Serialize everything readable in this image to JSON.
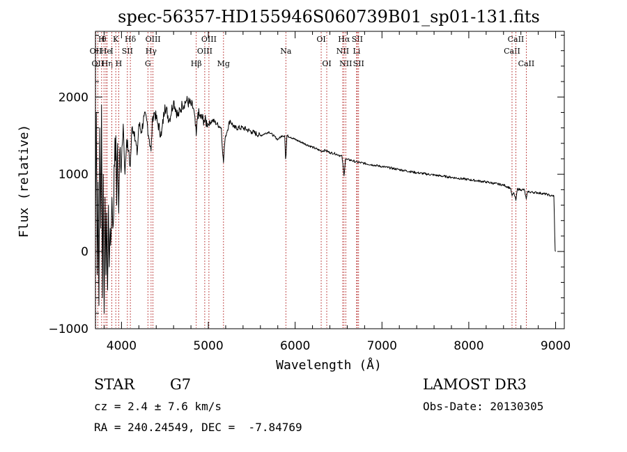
{
  "chart_data": {
    "type": "line",
    "title": "spec-56357-HD155946S060739B01_sp01-131.fits",
    "xlabel": "Wavelength (Å)",
    "ylabel": "Flux (relative)",
    "xlim": [
      3700,
      9100
    ],
    "ylim": [
      -1000,
      2850
    ],
    "x_ticks": [
      4000,
      5000,
      6000,
      7000,
      8000,
      9000
    ],
    "y_ticks": [
      -1000,
      0,
      1000,
      2000
    ],
    "series": [
      {
        "name": "flux",
        "x": [
          3700,
          3710,
          3720,
          3730,
          3740,
          3750,
          3760,
          3770,
          3780,
          3790,
          3800,
          3810,
          3820,
          3830,
          3840,
          3850,
          3860,
          3870,
          3880,
          3890,
          3900,
          3920,
          3935,
          3945,
          3955,
          3968,
          3980,
          4000,
          4020,
          4040,
          4060,
          4080,
          4101,
          4120,
          4150,
          4180,
          4200,
          4230,
          4260,
          4290,
          4320,
          4340,
          4360,
          4380,
          4420,
          4460,
          4500,
          4550,
          4600,
          4650,
          4700,
          4750,
          4800,
          4830,
          4861,
          4880,
          4900,
          4950,
          5000,
          5050,
          5100,
          5150,
          5167,
          5175,
          5184,
          5200,
          5250,
          5300,
          5400,
          5500,
          5600,
          5700,
          5800,
          5850,
          5880,
          5890,
          5896,
          5905,
          5950,
          6000,
          6100,
          6200,
          6300,
          6350,
          6400,
          6450,
          6500,
          6540,
          6563,
          6580,
          6600,
          6650,
          6700,
          6750,
          6800,
          6900,
          7000,
          7200,
          7400,
          7600,
          7800,
          8000,
          8200,
          8400,
          8480,
          8498,
          8520,
          8542,
          8560,
          8600,
          8640,
          8662,
          8680,
          8700,
          8800,
          8900,
          8950,
          8980,
          8990,
          8995,
          9000
        ],
        "y": [
          300,
          1800,
          -300,
          900,
          -700,
          1600,
          300,
          1900,
          -600,
          1000,
          -800,
          700,
          -300,
          500,
          -500,
          600,
          -200,
          300,
          200,
          700,
          300,
          1100,
          1500,
          600,
          1400,
          500,
          1300,
          1150,
          1650,
          1000,
          1450,
          1300,
          1100,
          1600,
          1550,
          1250,
          1650,
          1550,
          1750,
          1700,
          1450,
          1300,
          1750,
          1800,
          1650,
          1500,
          1900,
          1700,
          1950,
          1750,
          1900,
          1950,
          1900,
          1850,
          1500,
          1800,
          1750,
          1700,
          1650,
          1700,
          1650,
          1600,
          1250,
          1150,
          1350,
          1500,
          1700,
          1600,
          1600,
          1550,
          1500,
          1550,
          1450,
          1500,
          1500,
          1200,
          1250,
          1500,
          1480,
          1450,
          1400,
          1350,
          1300,
          1310,
          1280,
          1270,
          1250,
          1230,
          980,
          1200,
          1190,
          1180,
          1160,
          1150,
          1140,
          1120,
          1100,
          1060,
          1020,
          990,
          960,
          930,
          900,
          860,
          820,
          720,
          760,
          660,
          810,
          800,
          800,
          680,
          780,
          770,
          760,
          740,
          720,
          720,
          200,
          10,
          0
        ]
      }
    ],
    "lines": [
      {
        "wl": 3704,
        "label": "OII",
        "row": 2
      },
      {
        "wl": 3727,
        "label": "OII",
        "row": 3
      },
      {
        "wl": 3771,
        "label": "H",
        "row": 1
      },
      {
        "wl": 3798,
        "label": "θ",
        "row": 1
      },
      {
        "wl": 3835,
        "label": "Hη",
        "row": 3
      },
      {
        "wl": 3820,
        "label": "He",
        "row": 2
      },
      {
        "wl": 3889,
        "label": "I",
        "row": 2
      },
      {
        "wl": 3934,
        "label": "K",
        "row": 1
      },
      {
        "wl": 3968,
        "label": "H",
        "row": 3
      },
      {
        "wl": 4068,
        "label": "SII",
        "row": 2
      },
      {
        "wl": 4102,
        "label": "Hδ",
        "row": 1
      },
      {
        "wl": 4304,
        "label": "G",
        "row": 3
      },
      {
        "wl": 4341,
        "label": "Hγ",
        "row": 2
      },
      {
        "wl": 4363,
        "label": "OIII",
        "row": 1
      },
      {
        "wl": 4861,
        "label": "Hβ",
        "row": 3
      },
      {
        "wl": 4959,
        "label": "OIII",
        "row": 2
      },
      {
        "wl": 5007,
        "label": "OIII",
        "row": 1
      },
      {
        "wl": 5175,
        "label": "Mg",
        "row": 3
      },
      {
        "wl": 5893,
        "label": "Na",
        "row": 2
      },
      {
        "wl": 6300,
        "label": "OI",
        "row": 1
      },
      {
        "wl": 6364,
        "label": "OI",
        "row": 3
      },
      {
        "wl": 6548,
        "label": "NII",
        "row": 2
      },
      {
        "wl": 6563,
        "label": "Hα",
        "row": 1
      },
      {
        "wl": 6583,
        "label": "NII",
        "row": 3
      },
      {
        "wl": 6708,
        "label": "Li",
        "row": 2
      },
      {
        "wl": 6716,
        "label": "SII",
        "row": 1
      },
      {
        "wl": 6731,
        "label": "SII",
        "row": 3
      },
      {
        "wl": 8498,
        "label": "CaII",
        "row": 2
      },
      {
        "wl": 8542,
        "label": "CaII",
        "row": 1
      },
      {
        "wl": 8662,
        "label": "CaII",
        "row": 3
      }
    ]
  },
  "info": {
    "class": "STAR",
    "subclass": "G7",
    "cz": "cz = 2.4 ± 7.6 km/s",
    "coords": "RA = 240.24549, DEC =  -7.84769",
    "survey": "LAMOST DR3",
    "obs_date": "Obs-Date: 20130305"
  },
  "colors": {
    "line_marker": "#b22222",
    "spectrum": "#000000"
  }
}
